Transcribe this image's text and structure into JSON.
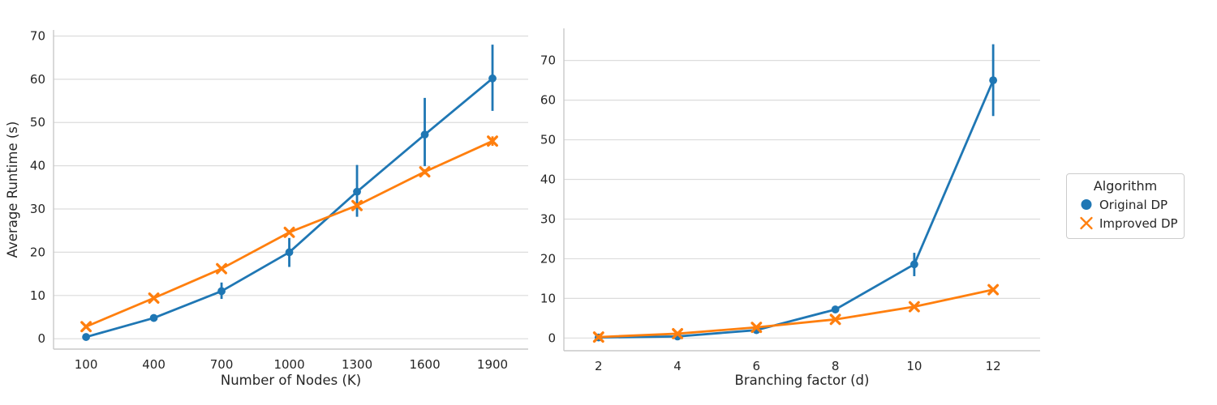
{
  "figure": {
    "background": "#ffffff",
    "grid_color": "#dcdcdc",
    "spine_color": "#c9c9c9",
    "text_color": "#262626"
  },
  "legend": {
    "title": "Algorithm",
    "entries": [
      {
        "label": "Original DP",
        "marker": "circle",
        "color": "#1f77b4"
      },
      {
        "label": "Improved DP",
        "marker": "x",
        "color": "#ff7f0e"
      }
    ]
  },
  "chart_data": [
    {
      "type": "line",
      "title": "",
      "xlabel": "Number of Nodes (K)",
      "ylabel": "Average Runtime (s)",
      "grid": "horizontal",
      "x": [
        100,
        400,
        700,
        1000,
        1300,
        1600,
        1900
      ],
      "xticks": [
        "100",
        "400",
        "700",
        "1000",
        "1300",
        "1600",
        "1900"
      ],
      "yticks": [
        0,
        10,
        20,
        30,
        40,
        50,
        60,
        70
      ],
      "xlim": [
        -44,
        2058
      ],
      "ylim": [
        -2.4,
        71.4
      ],
      "series": [
        {
          "name": "Original DP",
          "color": "#1f77b4",
          "marker": "circle",
          "values": [
            0.4,
            4.8,
            11.0,
            20.0,
            34.0,
            47.2,
            60.2
          ],
          "err_low": [
            0.3,
            4.5,
            9.2,
            16.6,
            28.2,
            39.9,
            52.7
          ],
          "err_high": [
            0.5,
            5.1,
            13.0,
            23.3,
            40.2,
            55.7,
            68.0
          ]
        },
        {
          "name": "Improved DP",
          "color": "#ff7f0e",
          "marker": "x",
          "values": [
            2.8,
            9.4,
            16.2,
            24.6,
            30.8,
            38.6,
            45.7
          ],
          "err_low": [
            2.5,
            9.1,
            15.8,
            24.1,
            30.3,
            38.0,
            44.6
          ],
          "err_high": [
            3.1,
            9.7,
            16.6,
            25.1,
            31.3,
            39.2,
            46.8
          ]
        }
      ]
    },
    {
      "type": "line",
      "title": "",
      "xlabel": "Branching factor (d)",
      "ylabel": "",
      "grid": "horizontal",
      "x": [
        2,
        4,
        6,
        8,
        10,
        12
      ],
      "xticks": [
        "2",
        "4",
        "6",
        "8",
        "10",
        "12"
      ],
      "yticks": [
        0,
        10,
        20,
        30,
        40,
        50,
        60,
        70
      ],
      "xlim": [
        1.12,
        13.19
      ],
      "ylim": [
        -3.2,
        78.1
      ],
      "series": [
        {
          "name": "Original DP",
          "color": "#1f77b4",
          "marker": "circle",
          "values": [
            0.15,
            0.4,
            2.0,
            7.2,
            18.6,
            65.0
          ],
          "err_low": [
            0.1,
            0.3,
            1.7,
            6.6,
            15.6,
            56.0
          ],
          "err_high": [
            0.2,
            0.5,
            2.3,
            7.9,
            21.5,
            74.1
          ]
        },
        {
          "name": "Improved DP",
          "color": "#ff7f0e",
          "marker": "x",
          "values": [
            0.25,
            1.1,
            2.7,
            4.7,
            7.9,
            12.2
          ],
          "err_low": [
            0.2,
            1.0,
            2.5,
            4.5,
            7.6,
            11.8
          ],
          "err_high": [
            0.3,
            1.2,
            2.9,
            4.9,
            8.2,
            12.6
          ]
        }
      ]
    }
  ]
}
